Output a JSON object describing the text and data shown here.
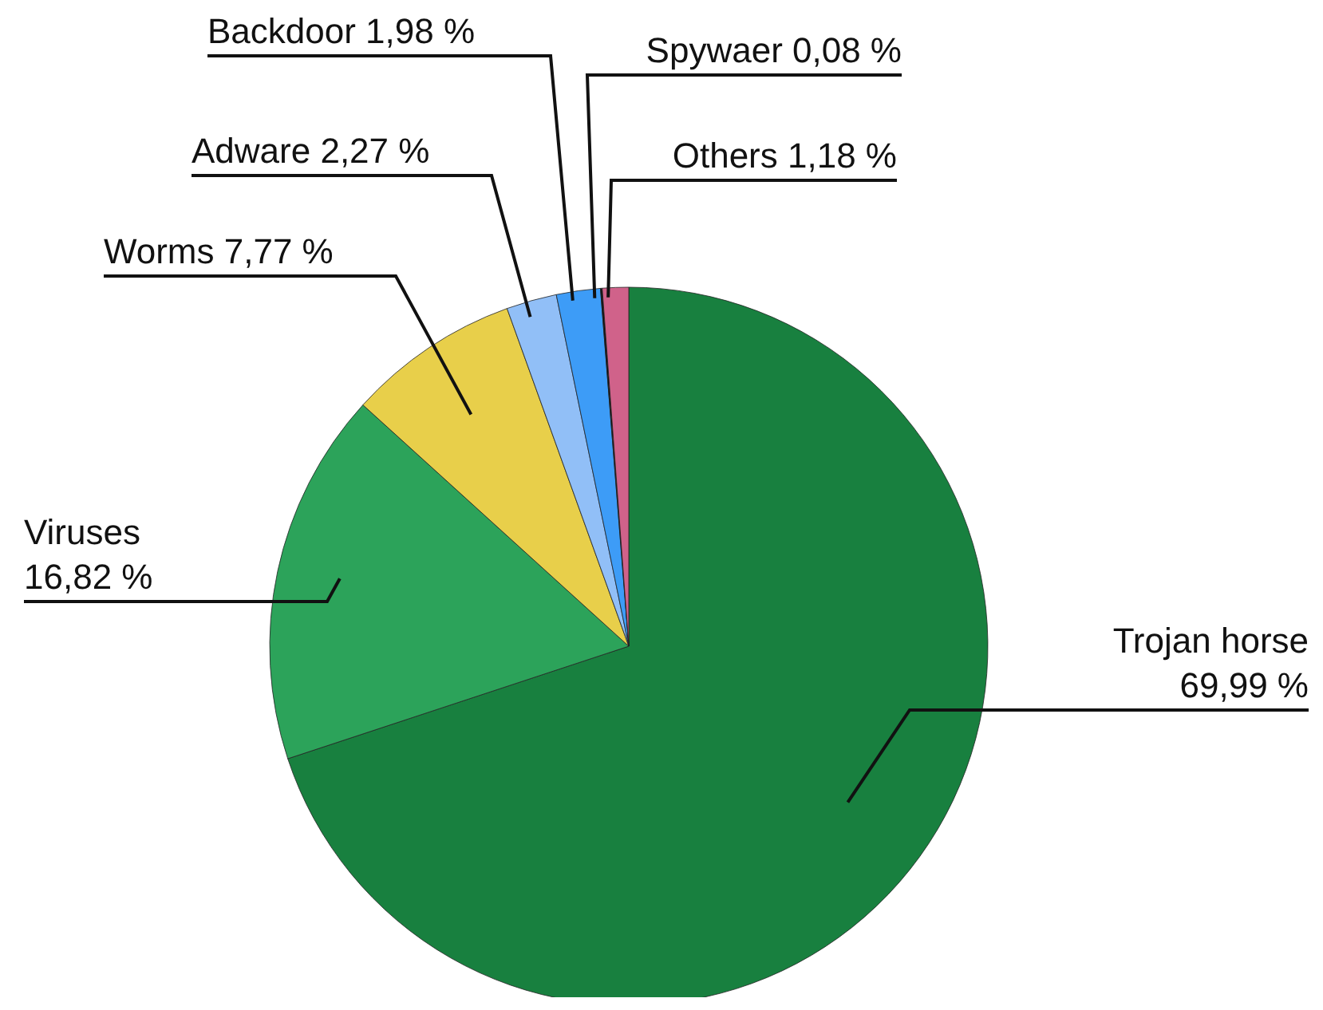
{
  "chart_data": {
    "type": "pie",
    "categories": [
      "Trojan horse",
      "Viruses",
      "Worms",
      "Adware",
      "Backdoor",
      "Spywaer",
      "Others"
    ],
    "values": [
      69.99,
      16.82,
      7.77,
      2.27,
      1.98,
      0.08,
      1.18
    ],
    "value_labels": [
      "69,99 %",
      "16,82 %",
      "7,77 %",
      "2,27 %",
      "1,98 %",
      "0,08 %",
      "1,18 %"
    ],
    "colors": [
      "#18803f",
      "#2ca35a",
      "#e8cf4a",
      "#91bff7",
      "#3d9cf7",
      "#111111",
      "#d0628a"
    ],
    "legend": false
  }
}
